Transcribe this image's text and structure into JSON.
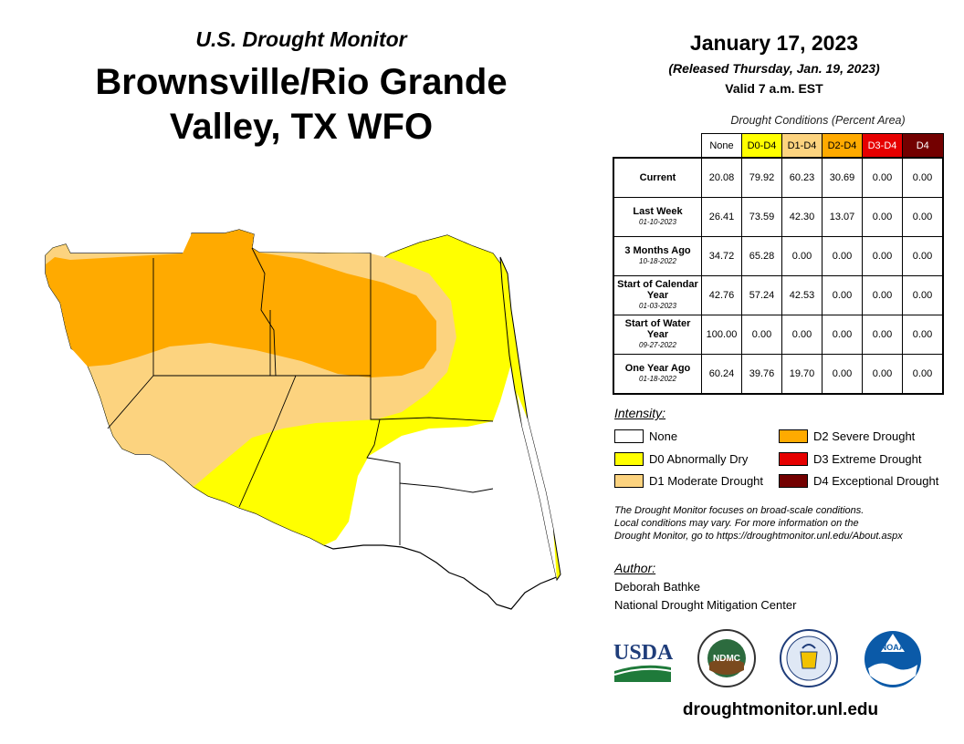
{
  "header": {
    "subtitle": "U.S. Drought Monitor",
    "title": "Brownsville/Rio Grande Valley, TX WFO",
    "date": "January 17, 2023",
    "released": "(Released Thursday, Jan. 19, 2023)",
    "valid": "Valid 7 a.m. EST"
  },
  "table": {
    "caption": "Drought Conditions (Percent Area)",
    "columns": [
      {
        "label": "None",
        "bg": "#ffffff",
        "fg": "#000000"
      },
      {
        "label": "D0-D4",
        "bg": "#ffff00",
        "fg": "#000000"
      },
      {
        "label": "D1-D4",
        "bg": "#fcd37f",
        "fg": "#000000"
      },
      {
        "label": "D2-D4",
        "bg": "#ffaa00",
        "fg": "#000000"
      },
      {
        "label": "D3-D4",
        "bg": "#e60000",
        "fg": "#ffffff"
      },
      {
        "label": "D4",
        "bg": "#730000",
        "fg": "#ffffff"
      }
    ],
    "rows": [
      {
        "label": "Current",
        "sub": "",
        "values": [
          "20.08",
          "79.92",
          "60.23",
          "30.69",
          "0.00",
          "0.00"
        ]
      },
      {
        "label": "Last Week",
        "sub": "01-10-2023",
        "values": [
          "26.41",
          "73.59",
          "42.30",
          "13.07",
          "0.00",
          "0.00"
        ]
      },
      {
        "label": "3 Months Ago",
        "sub": "10-18-2022",
        "values": [
          "34.72",
          "65.28",
          "0.00",
          "0.00",
          "0.00",
          "0.00"
        ]
      },
      {
        "label": "Start of Calendar Year",
        "sub": "01-03-2023",
        "values": [
          "42.76",
          "57.24",
          "42.53",
          "0.00",
          "0.00",
          "0.00"
        ]
      },
      {
        "label": "Start of Water Year",
        "sub": "09-27-2022",
        "values": [
          "100.00",
          "0.00",
          "0.00",
          "0.00",
          "0.00",
          "0.00"
        ]
      },
      {
        "label": "One Year Ago",
        "sub": "01-18-2022",
        "values": [
          "60.24",
          "39.76",
          "19.70",
          "0.00",
          "0.00",
          "0.00"
        ]
      }
    ]
  },
  "legend": {
    "title": "Intensity:",
    "items": [
      {
        "label": "None",
        "color": "#ffffff"
      },
      {
        "label": "D0 Abnormally Dry",
        "color": "#ffff00"
      },
      {
        "label": "D1 Moderate Drought",
        "color": "#fcd37f"
      },
      {
        "label": "D2 Severe Drought",
        "color": "#ffaa00"
      },
      {
        "label": "D3 Extreme Drought",
        "color": "#e60000"
      },
      {
        "label": "D4 Exceptional Drought",
        "color": "#730000"
      }
    ]
  },
  "note": {
    "line1": "The Drought Monitor focuses on broad-scale conditions.",
    "line2": "Local conditions may vary. For more information on the",
    "line3": "Drought Monitor, go to https://droughtmonitor.unl.edu/About.aspx"
  },
  "author": {
    "label": "Author:",
    "name": "Deborah Bathke",
    "org": "National Drought Mitigation Center"
  },
  "logos": {
    "usda": "USDA",
    "ndmc": "NDMC",
    "noaa": "NOAA"
  },
  "website": "droughtmonitor.unl.edu"
}
